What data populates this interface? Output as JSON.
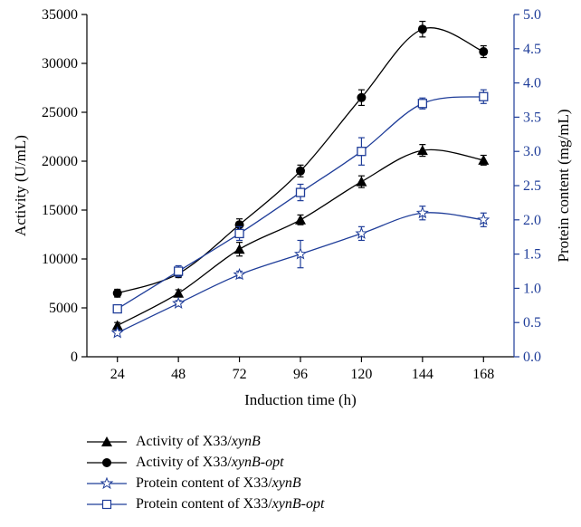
{
  "chart_data": {
    "type": "line",
    "x": [
      24,
      48,
      72,
      96,
      120,
      144,
      168
    ],
    "xlabel": "Induction time (h)",
    "ylabel": "Activity (U/mL)",
    "y2label": "Protein content (mg/mL)",
    "ylim": [
      0,
      35000
    ],
    "y2lim": [
      0.0,
      5.0
    ],
    "yticks": [
      "0",
      "5000",
      "10000",
      "15000",
      "20000",
      "25000",
      "30000",
      "35000"
    ],
    "y2ticks": [
      "0.0",
      "0.5",
      "1.0",
      "1.5",
      "2.0",
      "2.5",
      "3.0",
      "3.5",
      "4.0",
      "4.5",
      "5.0"
    ],
    "xticks": [
      "24",
      "48",
      "72",
      "96",
      "120",
      "144",
      "168"
    ],
    "colors": {
      "activity": "#000000",
      "protein": "#1f3d99"
    },
    "series": [
      {
        "name_prefix": "Activity of X33/",
        "name_italic": "xynB",
        "axis": "left",
        "marker": "triangle",
        "color": "#000000",
        "values": [
          3200,
          6500,
          11000,
          14000,
          17900,
          21100,
          20100
        ],
        "errors": [
          300,
          350,
          700,
          500,
          600,
          600,
          500
        ]
      },
      {
        "name_prefix": "Activity of X33/",
        "name_italic": "xynB-opt",
        "axis": "left",
        "marker": "circle",
        "color": "#000000",
        "values": [
          6500,
          8500,
          13500,
          19000,
          26500,
          33500,
          31200
        ],
        "errors": [
          400,
          400,
          600,
          600,
          800,
          800,
          600
        ]
      },
      {
        "name_prefix": "Protein content of X33/",
        "name_italic": "xynB",
        "axis": "right",
        "marker": "star",
        "color": "#1f3d99",
        "values": [
          0.35,
          0.78,
          1.2,
          1.5,
          1.8,
          2.1,
          2.0
        ],
        "errors": [
          0.04,
          0.04,
          0.05,
          0.2,
          0.1,
          0.1,
          0.1
        ]
      },
      {
        "name_prefix": "Protein content of X33/",
        "name_italic": "xynB-opt",
        "axis": "right",
        "marker": "square",
        "color": "#1f3d99",
        "values": [
          0.7,
          1.25,
          1.8,
          2.4,
          3.0,
          3.7,
          3.8
        ],
        "errors": [
          0.05,
          0.08,
          0.1,
          0.12,
          0.2,
          0.08,
          0.1
        ]
      }
    ],
    "legend_placement": "bottom"
  }
}
